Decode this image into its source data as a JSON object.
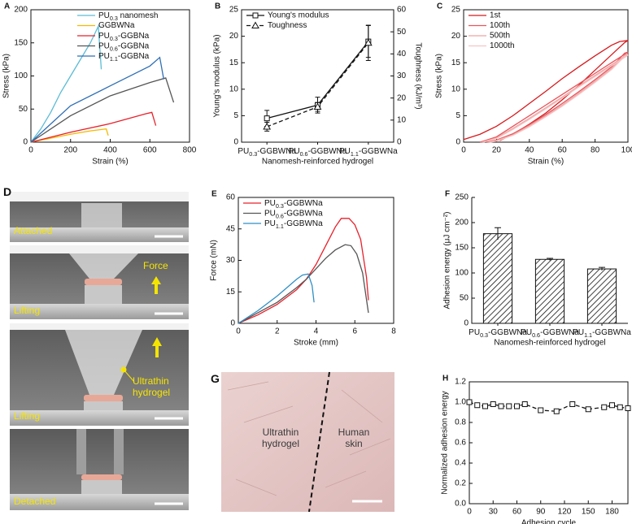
{
  "chart_data": [
    {
      "type": "line",
      "panel_label": "A",
      "xlabel": "Strain (%)",
      "ylabel": "Stress (kPa)",
      "xlim": [
        0,
        800
      ],
      "xticks": [
        0,
        200,
        400,
        600,
        800
      ],
      "ylim": [
        0,
        200
      ],
      "yticks": [
        0,
        50,
        100,
        150,
        200
      ],
      "legend": "upper right",
      "series": [
        {
          "name": "PU0.3 nanomesh",
          "color": "#5bbcd6",
          "x": [
            0,
            50,
            100,
            150,
            200,
            250,
            300,
            340,
            355
          ],
          "values": [
            0,
            20,
            45,
            75,
            100,
            125,
            150,
            175,
            110
          ]
        },
        {
          "name": "GGBWNa",
          "color": "#f5b800",
          "x": [
            0,
            100,
            200,
            300,
            380,
            390
          ],
          "values": [
            0,
            6,
            12,
            17,
            20,
            10
          ]
        },
        {
          "name": "PU0.3-GGBNa",
          "color": "#e8202a",
          "x": [
            0,
            200,
            400,
            580,
            610,
            630
          ],
          "values": [
            0,
            15,
            28,
            43,
            45,
            25
          ]
        },
        {
          "name": "PU0.6-GGBNa",
          "color": "#555555",
          "x": [
            0,
            200,
            400,
            600,
            680,
            720
          ],
          "values": [
            0,
            40,
            70,
            90,
            97,
            60
          ]
        },
        {
          "name": "PU1.1-GGBNa",
          "color": "#2f6fb5",
          "x": [
            0,
            200,
            400,
            600,
            650,
            670
          ],
          "values": [
            0,
            55,
            85,
            115,
            128,
            95
          ]
        }
      ]
    },
    {
      "type": "line",
      "panel_label": "B",
      "xlabel": "Nanomesh-reinforced hydrogel",
      "ylabel": "Young's modulus (kPa)",
      "y2label": "Toughness (kJ/m³)",
      "categories": [
        "PU0.3-GGBWNa",
        "PU0.6-GGBWNa",
        "PU1.1-GGBWNa"
      ],
      "ylim": [
        0,
        25
      ],
      "yticks": [
        0,
        5,
        10,
        15,
        20,
        25
      ],
      "y2lim": [
        0,
        60
      ],
      "y2ticks": [
        0,
        10,
        20,
        30,
        40,
        50,
        60
      ],
      "legend": "upper left",
      "series": [
        {
          "name": "Young's modulus",
          "color": "#111111",
          "marker": "square",
          "values": [
            4.5,
            7,
            19
          ],
          "errors": [
            1.5,
            1.5,
            3
          ]
        },
        {
          "name": "Toughness",
          "color": "#111111",
          "marker": "triangle",
          "dashed": true,
          "axis": "y2",
          "values": [
            7,
            16,
            45
          ],
          "errors": [
            2,
            2,
            8
          ]
        }
      ]
    },
    {
      "type": "line",
      "panel_label": "C",
      "xlabel": "Strain (%)",
      "ylabel": "Stress (kPa)",
      "xlim": [
        0,
        100
      ],
      "xticks": [
        0,
        20,
        40,
        60,
        80,
        100
      ],
      "ylim": [
        0,
        25
      ],
      "yticks": [
        0,
        5,
        10,
        15,
        20,
        25
      ],
      "legend": "upper left",
      "series": [
        {
          "name": "1st",
          "color": "#d7191c",
          "x": [
            0,
            10,
            20,
            30,
            40,
            50,
            60,
            70,
            80,
            90,
            95,
            100,
            98,
            90,
            80,
            70,
            60,
            50,
            40,
            30,
            22
          ],
          "values": [
            0.5,
            1.5,
            3,
            5,
            7.3,
            9.6,
            12,
            14.2,
            16.3,
            18.3,
            19,
            19.2,
            18.8,
            16.5,
            13.6,
            10.7,
            8,
            5.5,
            3.4,
            1.5,
            0.3
          ]
        },
        {
          "name": "100th",
          "color": "#e8545a",
          "x": [
            10,
            20,
            30,
            40,
            50,
            60,
            70,
            80,
            90,
            100,
            98,
            90,
            80,
            70,
            60,
            50,
            40,
            30,
            20,
            14
          ],
          "values": [
            0,
            1,
            3,
            5,
            7,
            9,
            11,
            13,
            15,
            17,
            16.8,
            14.2,
            11.8,
            9.5,
            7.3,
            5.2,
            3.3,
            1.6,
            0.4,
            0
          ]
        },
        {
          "name": "500th",
          "color": "#f0a0a0",
          "x": [
            11,
            20,
            30,
            40,
            50,
            60,
            70,
            80,
            90,
            100,
            98,
            90,
            80,
            70,
            60,
            50,
            40,
            30,
            20,
            15
          ],
          "values": [
            0,
            0.8,
            2.6,
            4.5,
            6.5,
            8.5,
            10.6,
            12.6,
            14.6,
            16.6,
            16.4,
            13.9,
            11.5,
            9.2,
            7,
            5,
            3.1,
            1.4,
            0.3,
            0
          ]
        },
        {
          "name": "1000th",
          "color": "#f6c4c4",
          "x": [
            12,
            20,
            30,
            40,
            50,
            60,
            70,
            80,
            90,
            100,
            98,
            90,
            80,
            70,
            60,
            50,
            40,
            30,
            20,
            16
          ],
          "values": [
            0,
            0.7,
            2.4,
            4.3,
            6.3,
            8.3,
            10.4,
            12.4,
            14.4,
            16.4,
            16.2,
            13.7,
            11.3,
            9,
            6.8,
            4.8,
            2.9,
            1.3,
            0.2,
            0
          ]
        }
      ]
    },
    {
      "type": "line",
      "panel_label": "E",
      "xlabel": "Stroke (mm)",
      "ylabel": "Force (mN)",
      "xlim": [
        0,
        8
      ],
      "xticks": [
        0,
        2,
        4,
        6,
        8
      ],
      "ylim": [
        0,
        60
      ],
      "yticks": [
        0,
        15,
        30,
        45,
        60
      ],
      "legend": "upper left",
      "series": [
        {
          "name": "PU0.3-GGBWNa",
          "color": "#e8202a",
          "x": [
            0,
            1,
            2,
            3,
            3.5,
            4,
            4.5,
            5,
            5.3,
            5.7,
            6,
            6.3,
            6.6,
            6.7
          ],
          "values": [
            0,
            4,
            9,
            16,
            21,
            28,
            37,
            46,
            50,
            50,
            47,
            40,
            22,
            11
          ]
        },
        {
          "name": "PU0.6-GGBWNa",
          "color": "#555555",
          "x": [
            0,
            1,
            2,
            3,
            3.5,
            4,
            4.5,
            5,
            5.5,
            5.8,
            6.1,
            6.4,
            6.7
          ],
          "values": [
            0,
            5,
            10,
            17,
            21,
            26,
            31,
            35,
            37.5,
            37,
            33,
            24,
            5
          ]
        },
        {
          "name": "PU1.1-GGBWNa",
          "color": "#2f8fc5",
          "x": [
            0,
            1,
            2,
            2.5,
            3,
            3.3,
            3.6,
            3.8,
            3.9
          ],
          "values": [
            0,
            6,
            13,
            17,
            21,
            23,
            23.5,
            18,
            10
          ]
        }
      ]
    },
    {
      "type": "bar",
      "panel_label": "F",
      "xlabel": "Nanomesh-reinforced hydrogel",
      "ylabel": "Adhesion energy (μJ cm⁻²)",
      "categories": [
        "PU0.3-GGBWNa",
        "PU0.6-GGBWNa",
        "PU1.1-GGBWNa"
      ],
      "values": [
        178,
        127,
        108
      ],
      "errors": [
        12,
        2,
        3
      ],
      "color": "#111111",
      "hatch": true,
      "ylim": [
        0,
        250
      ],
      "yticks": [
        0,
        50,
        100,
        150,
        200,
        250
      ]
    },
    {
      "type": "line",
      "panel_label": "H",
      "xlabel": "Adhesion cycle",
      "ylabel": "Normalized adhesion energy",
      "xlim": [
        0,
        200
      ],
      "xticks": [
        0,
        30,
        60,
        90,
        120,
        150,
        180
      ],
      "ylim": [
        0,
        1.2
      ],
      "yticks": [
        {
          "value": 0,
          "label": "0.0"
        },
        0.2,
        0.4,
        0.6,
        0.8,
        {
          "value": 1,
          "label": "1.0"
        },
        1.2
      ],
      "series": [
        {
          "name": "Normalized adhesion energy",
          "color": "#111111",
          "marker": "square",
          "dashed": true,
          "x": [
            0,
            10,
            20,
            30,
            40,
            50,
            60,
            70,
            90,
            110,
            130,
            150,
            170,
            180,
            190,
            200
          ],
          "values": [
            1.0,
            0.97,
            0.96,
            0.98,
            0.96,
            0.96,
            0.96,
            0.98,
            0.92,
            0.91,
            0.98,
            0.93,
            0.95,
            0.97,
            0.95,
            0.94
          ]
        }
      ]
    }
  ],
  "photo_panels": [
    {
      "panel_label": "D",
      "labels": [
        "Attached",
        "Force",
        "Lifting",
        "Ultrathin hydrogel",
        "Lifting",
        "Detached"
      ]
    },
    {
      "panel_label": "G",
      "labels": [
        "Ultrathin hydrogel",
        "Human skin"
      ]
    }
  ]
}
